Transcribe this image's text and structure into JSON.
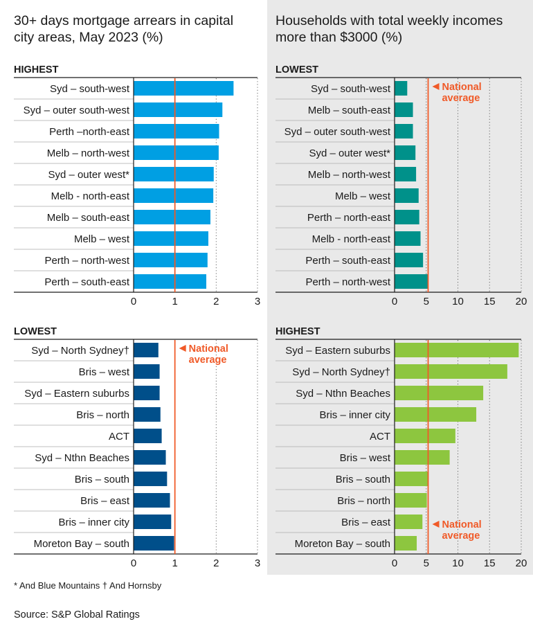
{
  "titles": {
    "left": "30+ days mortgage arrears in capital city areas, May 2023 (%)",
    "right": "Households with total weekly incomes more than $3000 (%)"
  },
  "footnote": "* And Blue Mountains  † And Hornsby",
  "source": "Source: S&P Global Ratings",
  "national_average_label": [
    "National",
    "average"
  ],
  "colors": {
    "arrears_highest": "#009fe3",
    "arrears_lowest": "#004f8a",
    "income_lowest": "#00918a",
    "income_highest": "#8dc63f",
    "national_average": "#f05a28"
  },
  "chart_data": [
    {
      "id": "arrears-highest",
      "type": "bar",
      "orientation": "horizontal",
      "heading": "HIGHEST",
      "categories": [
        "Syd – south-west",
        "Syd – outer south-west",
        "Perth –north-east",
        "Melb – north-west",
        "Syd – outer west*",
        "Melb - north-east",
        "Melb – south-east",
        "Melb – west",
        "Perth – north-west",
        "Perth – south-east"
      ],
      "values": [
        2.42,
        2.15,
        2.07,
        2.06,
        1.94,
        1.93,
        1.86,
        1.81,
        1.79,
        1.76
      ],
      "xlim": [
        0,
        3
      ],
      "xticks": [
        0,
        1,
        2,
        3
      ],
      "national_average": 1.0,
      "show_average_label": false,
      "grid": "dotted vertical"
    },
    {
      "id": "income-lowest",
      "type": "bar",
      "orientation": "horizontal",
      "heading": "LOWEST",
      "categories": [
        "Syd – south-west",
        "Melb – south-east",
        "Syd – outer south-west",
        "Syd – outer west*",
        "Melb – north-west",
        "Melb – west",
        "Perth – north-east",
        "Melb - north-east",
        "Perth – south-east",
        "Perth – north-west"
      ],
      "values": [
        2.0,
        2.9,
        2.9,
        3.3,
        3.4,
        3.8,
        3.9,
        4.1,
        4.5,
        5.3
      ],
      "xlim": [
        0,
        20
      ],
      "xticks": [
        0,
        5,
        10,
        15,
        20
      ],
      "national_average": 5.3,
      "show_average_label": true,
      "average_label_position": "top-right",
      "grid": "dotted vertical"
    },
    {
      "id": "arrears-lowest",
      "type": "bar",
      "orientation": "horizontal",
      "heading": "LOWEST",
      "categories": [
        "Syd – North Sydney†",
        "Bris – west",
        "Syd – Eastern suburbs",
        "Bris – north",
        "ACT",
        "Syd – Nthn Beaches",
        "Bris – south",
        "Bris – east",
        "Bris – inner city",
        "Moreton Bay – south"
      ],
      "values": [
        0.6,
        0.63,
        0.63,
        0.65,
        0.68,
        0.78,
        0.81,
        0.88,
        0.91,
        0.98
      ],
      "xlim": [
        0,
        3
      ],
      "xticks": [
        0,
        1,
        2,
        3
      ],
      "national_average": 1.0,
      "show_average_label": true,
      "average_label_position": "top-right",
      "grid": "dotted vertical"
    },
    {
      "id": "income-highest",
      "type": "bar",
      "orientation": "horizontal",
      "heading": "HIGHEST",
      "categories": [
        "Syd – Eastern suburbs",
        "Syd – North Sydney†",
        "Syd – Nthn Beaches",
        "Bris – inner city",
        "ACT",
        "Bris – west",
        "Bris – south",
        "Bris – north",
        "Bris – east",
        "Moreton Bay – south"
      ],
      "values": [
        19.6,
        17.8,
        14.0,
        12.9,
        9.6,
        8.7,
        5.4,
        5.1,
        4.4,
        3.5
      ],
      "xlim": [
        0,
        20
      ],
      "xticks": [
        0,
        5,
        10,
        15,
        20
      ],
      "national_average": 5.3,
      "show_average_label": true,
      "average_label_position": "bottom-right",
      "grid": "dotted vertical"
    }
  ]
}
